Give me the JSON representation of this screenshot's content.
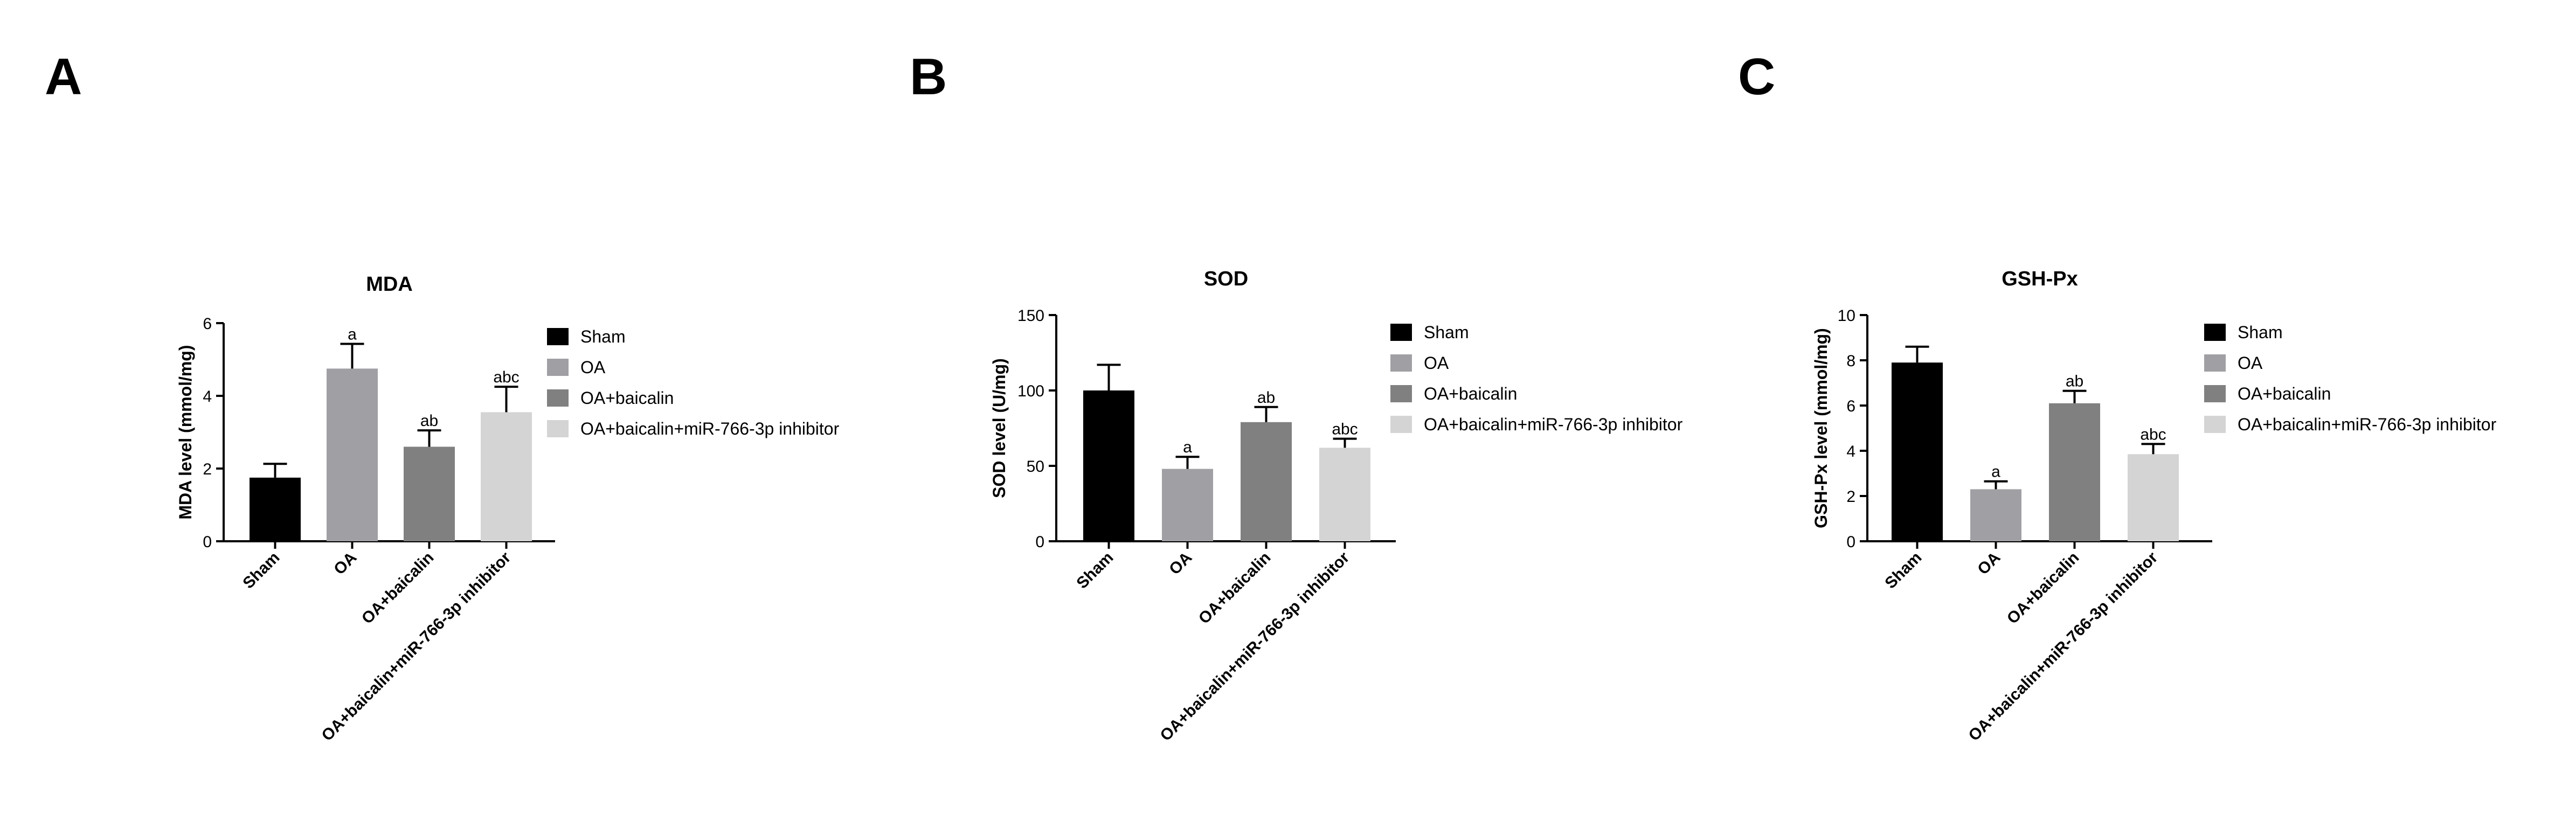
{
  "figure": {
    "panel_labels": [
      "A",
      "B",
      "C"
    ]
  },
  "colors": {
    "Sham": "#000000",
    "OA": "#a0a0a4",
    "OA+baicalin": "#808080",
    "OA+baicalin+miR-766-3p inhibitor": "#d4d4d4"
  },
  "chart_data": [
    {
      "type": "bar",
      "panel": "A",
      "title": "MDA",
      "xlabel": "",
      "ylabel": "MDA level (mmol/mg)",
      "ylim": [
        0,
        6
      ],
      "yticks": [
        0,
        2,
        4,
        6
      ],
      "categories": [
        "Sham",
        "OA",
        "OA+baicalin",
        "OA+baicalin+miR-766-3p inhibitor"
      ],
      "values": [
        1.75,
        4.75,
        2.6,
        3.55
      ],
      "errors": [
        0.38,
        0.68,
        0.45,
        0.7
      ],
      "annotations": [
        "",
        "a",
        "ab",
        "abc"
      ],
      "legend": [
        "Sham",
        "OA",
        "OA+baicalin",
        "OA+baicalin+miR-766-3p inhibitor"
      ],
      "legend_position": "right",
      "grid": false
    },
    {
      "type": "bar",
      "panel": "B",
      "title": "SOD",
      "xlabel": "",
      "ylabel": "SOD level (U/mg)",
      "ylim": [
        0,
        150
      ],
      "yticks": [
        0,
        50,
        100,
        150
      ],
      "categories": [
        "Sham",
        "OA",
        "OA+baicalin",
        "OA+baicalin+miR-766-3p inhibitor"
      ],
      "values": [
        100,
        48,
        79,
        62
      ],
      "errors": [
        17,
        8,
        10,
        6
      ],
      "annotations": [
        "",
        "a",
        "ab",
        "abc"
      ],
      "legend": [
        "Sham",
        "OA",
        "OA+baicalin",
        "OA+baicalin+miR-766-3p inhibitor"
      ],
      "legend_position": "right",
      "grid": false
    },
    {
      "type": "bar",
      "panel": "C",
      "title": "GSH-Px",
      "xlabel": "",
      "ylabel": "GSH-Px level (mmol/mg)",
      "ylim": [
        0,
        10
      ],
      "yticks": [
        0,
        2,
        4,
        6,
        8,
        10
      ],
      "categories": [
        "Sham",
        "OA",
        "OA+baicalin",
        "OA+baicalin+miR-766-3p inhibitor"
      ],
      "values": [
        7.9,
        2.3,
        6.1,
        3.85
      ],
      "errors": [
        0.7,
        0.35,
        0.55,
        0.45
      ],
      "annotations": [
        "",
        "a",
        "ab",
        "abc"
      ],
      "legend": [
        "Sham",
        "OA",
        "OA+baicalin",
        "OA+baicalin+miR-766-3p inhibitor"
      ],
      "legend_position": "right",
      "grid": false
    }
  ]
}
